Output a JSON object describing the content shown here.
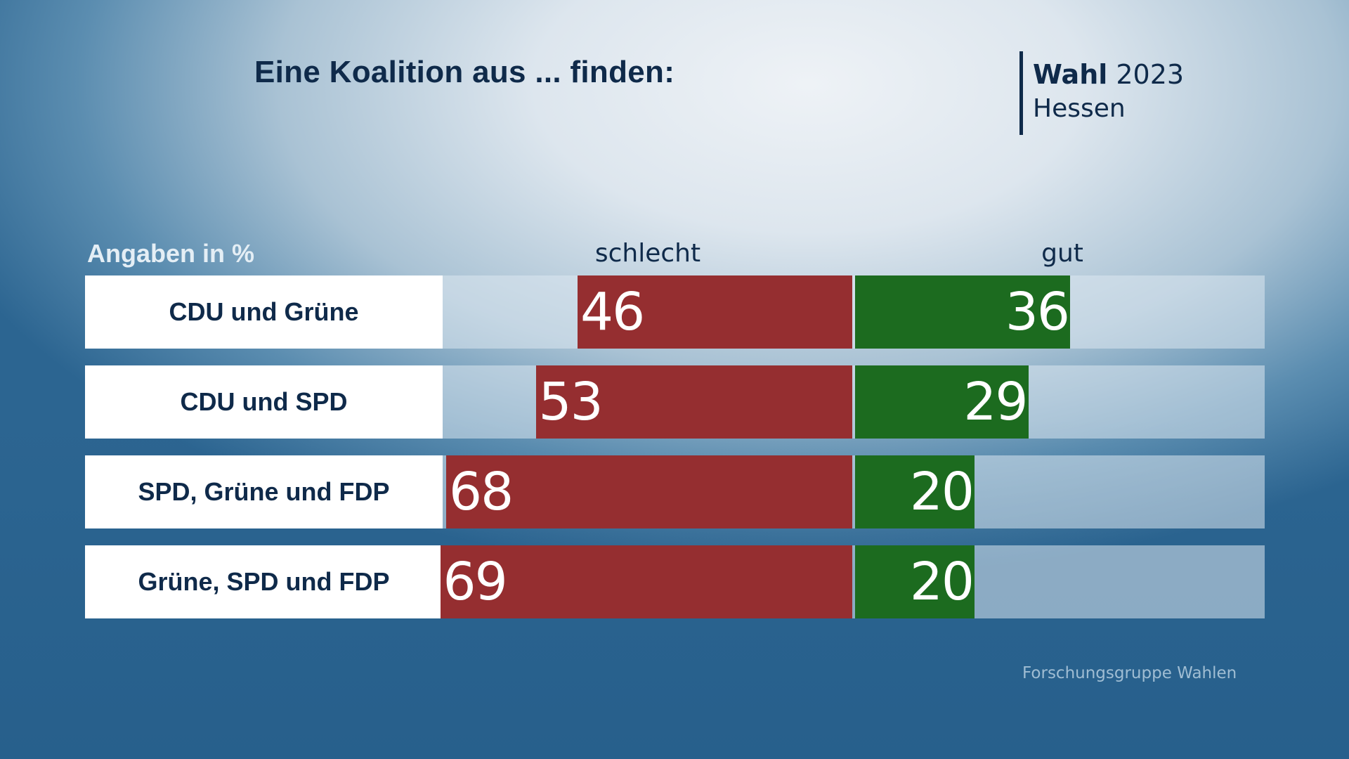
{
  "header": {
    "title": "Eine Koalition aus ... finden:",
    "brand_bold": "Wahl",
    "brand_year": "2023",
    "brand_region": "Hessen"
  },
  "chart_data": {
    "type": "bar",
    "orientation": "horizontal-diverging",
    "title": "Eine Koalition aus ... finden:",
    "unit_label": "Angaben in %",
    "categories": [
      "CDU und Grüne",
      "CDU und SPD",
      "SPD, Grüne und FDP",
      "Grüne, SPD und FDP"
    ],
    "series": [
      {
        "name": "schlecht",
        "color": "#952e30",
        "values": [
          46,
          53,
          68,
          69
        ]
      },
      {
        "name": "gut",
        "color": "#1c6b1f",
        "values": [
          36,
          29,
          20,
          20
        ]
      }
    ],
    "xlim": [
      -69,
      69
    ],
    "source": "Forschungsgruppe Wahlen"
  }
}
